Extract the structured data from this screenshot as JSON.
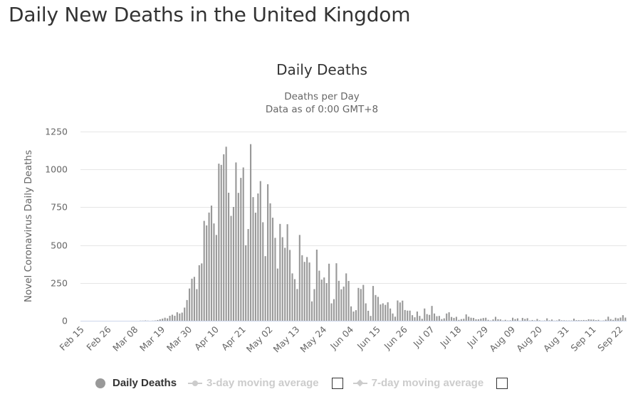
{
  "page_title": "Daily New Deaths in the United Kingdom",
  "legend": {
    "items": [
      {
        "label": "Daily Deaths",
        "icon": "circle-icon",
        "active": true
      },
      {
        "label": "3-day moving average",
        "icon": "line-circle-icon",
        "active": false
      },
      {
        "label": "7-day moving average",
        "icon": "line-diamond-icon",
        "active": false
      }
    ]
  },
  "chart_data": {
    "type": "bar",
    "title": "Daily Deaths",
    "subtitle": [
      "Deaths per Day",
      "Data as of 0:00 GMT+8"
    ],
    "xlabel": "",
    "ylabel": "Novel Coronavirus Daily Deaths",
    "ylim": [
      0,
      1250
    ],
    "yticks": [
      0,
      250,
      500,
      750,
      1000,
      1250
    ],
    "grid": true,
    "bar_color": "#999999",
    "start_date": "Feb 15",
    "xtick_labels": [
      "Feb 15",
      "Feb 26",
      "Mar 08",
      "Mar 19",
      "Mar 30",
      "Apr 10",
      "Apr 21",
      "May 02",
      "May 13",
      "May 24",
      "Jun 04",
      "Jun 15",
      "Jun 26",
      "Jul 07",
      "Jul 18",
      "Jul 29",
      "Aug 09",
      "Aug 20",
      "Aug 31",
      "Sep 11",
      "Sep 22"
    ],
    "xtick_interval_days": 11,
    "series": [
      {
        "name": "Daily Deaths",
        "values": [
          0,
          0,
          0,
          0,
          0,
          0,
          0,
          0,
          0,
          0,
          0,
          0,
          0,
          0,
          0,
          0,
          0,
          0,
          0,
          0,
          0,
          0,
          0,
          0,
          1,
          1,
          2,
          1,
          0,
          1,
          2,
          5,
          10,
          14,
          20,
          16,
          33,
          40,
          33,
          56,
          48,
          54,
          87,
          137,
          213,
          278,
          290,
          209,
          367,
          379,
          660,
          630,
          715,
          761,
          643,
          567,
          1038,
          1030,
          1100,
          1150,
          846,
          693,
          752,
          1046,
          845,
          944,
          1013,
          499,
          606,
          1167,
          817,
          714,
          841,
          923,
          651,
          427,
          902,
          776,
          681,
          548,
          345,
          640,
          552,
          482,
          638,
          468,
          313,
          275,
          210,
          567,
          433,
          389,
          421,
          385,
          128,
          209,
          470,
          331,
          272,
          286,
          249,
          377,
          115,
          143,
          380,
          264,
          208,
          226,
          313,
          263,
          95,
          61,
          70,
          217,
          210,
          237,
          115,
          66,
          32,
          230,
          170,
          158,
          108,
          115,
          105,
          122,
          81,
          48,
          27,
          134,
          121,
          133,
          71,
          67,
          67,
          37,
          23,
          61,
          32,
          13,
          81,
          44,
          39,
          98,
          48,
          30,
          32,
          11,
          16,
          48,
          56,
          25,
          19,
          26,
          6,
          11,
          13,
          42,
          27,
          20,
          19,
          10,
          10,
          14,
          18,
          20,
          6,
          2,
          9,
          26,
          10,
          9,
          2,
          6,
          2,
          3,
          20,
          11,
          16,
          1,
          19,
          12,
          17,
          2,
          5,
          2,
          12,
          3,
          1,
          2,
          16,
          3,
          8,
          1,
          2,
          10,
          3,
          3,
          2,
          2,
          2,
          14,
          4,
          4,
          4,
          5,
          4,
          10,
          8,
          8,
          4,
          6,
          1,
          2,
          8,
          27,
          11,
          6,
          20,
          16,
          21,
          37,
          21
        ]
      }
    ]
  }
}
